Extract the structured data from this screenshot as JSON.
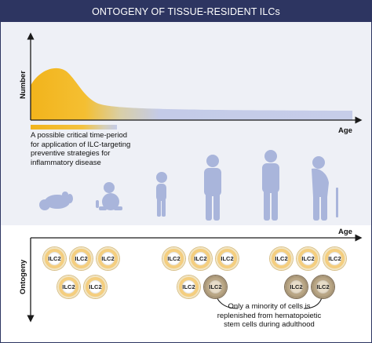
{
  "title": "ONTOGENY OF TISSUE-RESIDENT ILCs",
  "upper_plot": {
    "y_label": "Number",
    "x_label": "Age",
    "caption": "A possible critical time-period for application of ILC-targeting preventive strategies for inflammatory disease",
    "colors": {
      "peak": "#f2b41c",
      "tail": "#c4cbe8",
      "silhouettes": "#a9b5db",
      "axis": "#1a1a1a"
    }
  },
  "life_stages": [
    "infant-icon",
    "toddler-icon",
    "child-icon",
    "adult-icon",
    "middle-aged-icon",
    "elderly-with-cane-icon"
  ],
  "lower_plot": {
    "y_label": "Ontogeny",
    "x_label": "Age",
    "cell_label": "ILC2",
    "groups": [
      {
        "replenished_count": 0,
        "total": 5
      },
      {
        "replenished_count": 1,
        "total": 5
      },
      {
        "replenished_count": 2,
        "total": 5
      }
    ],
    "note": "Only a minority of cells is replenished from hematopoietic stem cells during adulthood",
    "colors": {
      "resident": "#f5cf80",
      "replenished": "#b9a685"
    }
  }
}
